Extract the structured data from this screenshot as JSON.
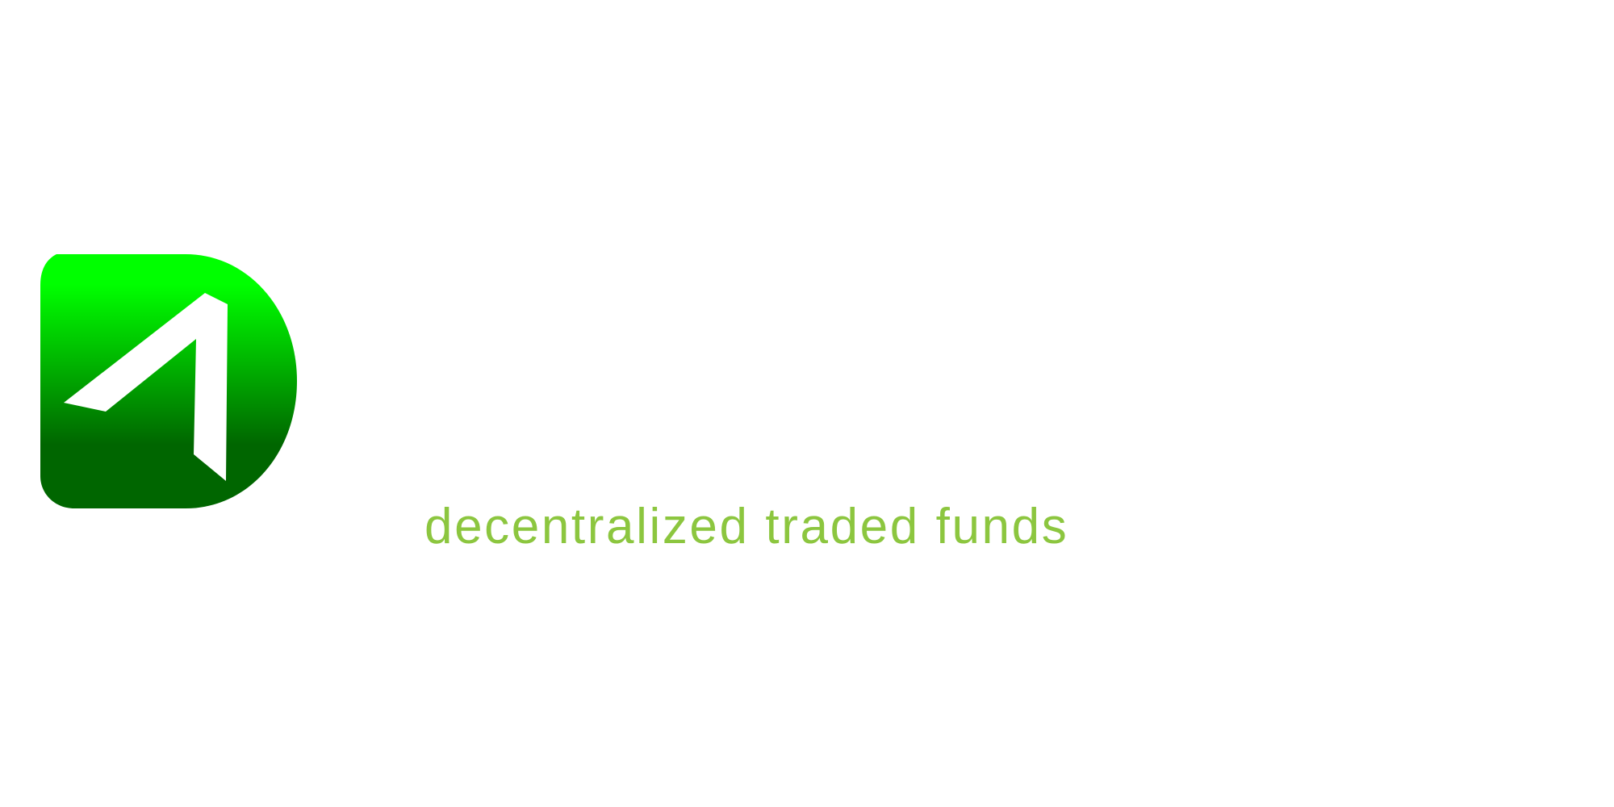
{
  "brand": {
    "tagline": "decentralized traded funds",
    "colors": {
      "tagline": "#8cc63f",
      "mark_gradient_top": "#00ff00",
      "mark_gradient_bottom": "#006600",
      "mark_glyph": "#ffffff"
    },
    "mark_icon": "green-d-shaped-logo-with-white-arrow"
  }
}
